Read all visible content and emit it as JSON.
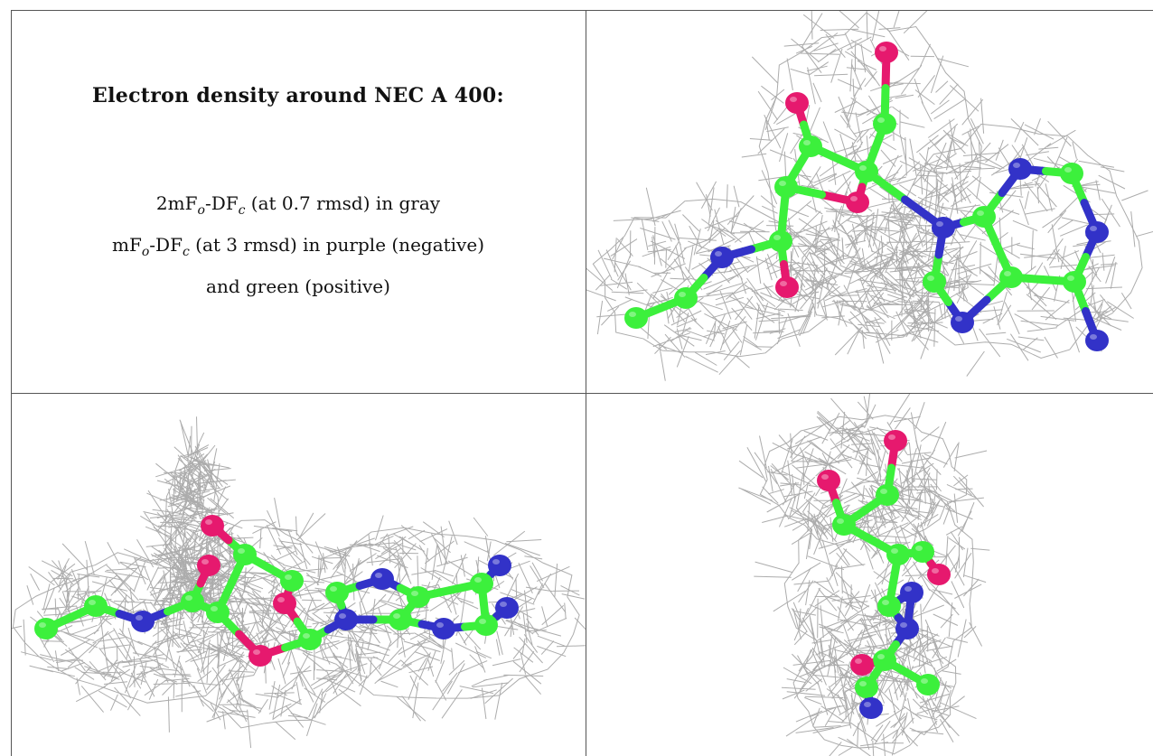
{
  "caption": {
    "title": "Electron density around NEC A 400:",
    "line1_prefix": "2mF",
    "line1_sub1": "o",
    "line1_mid": "-DF",
    "line1_sub2": "c",
    "line1_suffix": " (at 0.7 rmsd) in gray",
    "line2_prefix": "mF",
    "line2_sub1": "o",
    "line2_mid": "-DF",
    "line2_sub2": "c",
    "line2_suffix": " (at 3 rmsd) in purple (negative)",
    "line3": "and green (positive)"
  },
  "colors": {
    "carbon": "#3cf03c",
    "oxygen": "#e6196e",
    "nitrogen": "#3232c8",
    "mesh": "#a8a8a8",
    "border": "#555555"
  }
}
